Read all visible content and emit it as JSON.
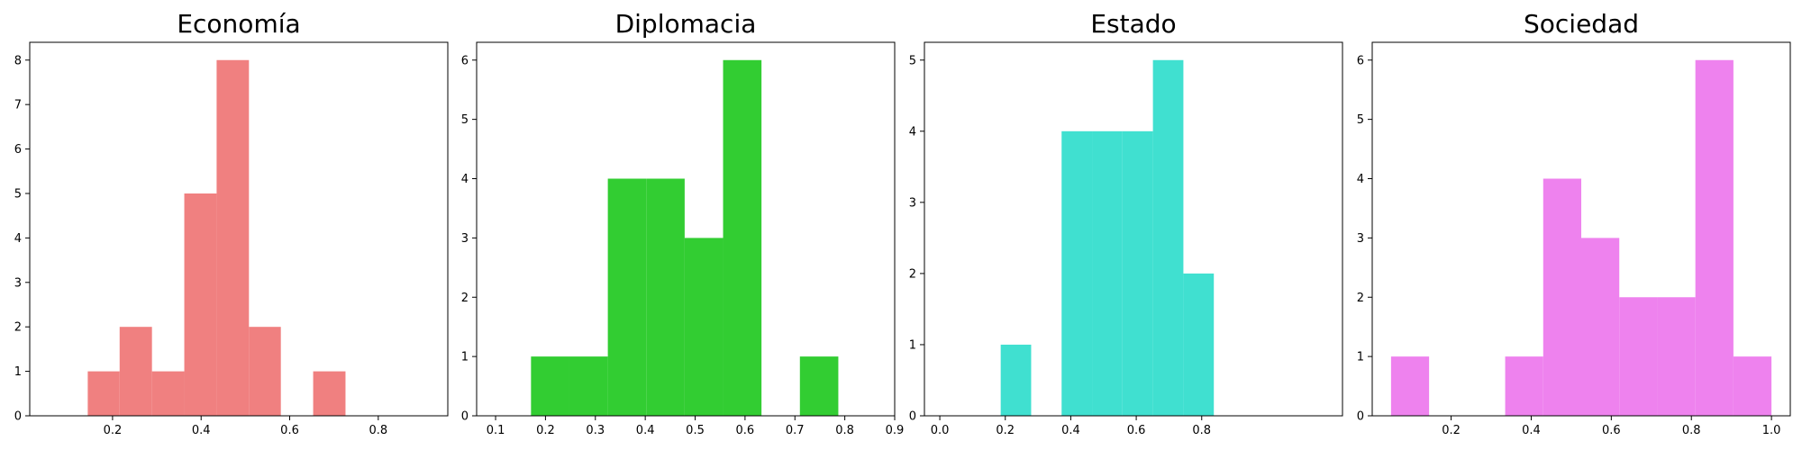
{
  "chart_data": [
    {
      "type": "bar",
      "title": "Economía",
      "color": "#f08080",
      "xlim": [
        0.013,
        0.957
      ],
      "ylim": [
        0,
        8.4
      ],
      "xticks": [
        0.2,
        0.4,
        0.6,
        0.8
      ],
      "xtick_labels": [
        "0.2",
        "0.4",
        "0.6",
        "0.8"
      ],
      "yticks": [
        0,
        1,
        2,
        3,
        4,
        5,
        6,
        7,
        8
      ],
      "ytick_labels": [
        "0",
        "1",
        "2",
        "3",
        "4",
        "5",
        "6",
        "7",
        "8"
      ],
      "bins": [
        {
          "x0": 0.144,
          "x1": 0.216,
          "count": 1
        },
        {
          "x0": 0.216,
          "x1": 0.289,
          "count": 2
        },
        {
          "x0": 0.289,
          "x1": 0.362,
          "count": 1
        },
        {
          "x0": 0.362,
          "x1": 0.435,
          "count": 5
        },
        {
          "x0": 0.435,
          "x1": 0.508,
          "count": 8
        },
        {
          "x0": 0.508,
          "x1": 0.58,
          "count": 2
        },
        {
          "x0": 0.58,
          "x1": 0.653,
          "count": 0
        },
        {
          "x0": 0.653,
          "x1": 0.726,
          "count": 1
        }
      ]
    },
    {
      "type": "bar",
      "title": "Diplomacia",
      "color": "#32cd32",
      "xlim": [
        0.062,
        0.9
      ],
      "ylim": [
        0,
        6.3
      ],
      "xticks": [
        0.1,
        0.2,
        0.3,
        0.4,
        0.5,
        0.6,
        0.7,
        0.8,
        0.9
      ],
      "xtick_labels": [
        "0.1",
        "0.2",
        "0.3",
        "0.4",
        "0.5",
        "0.6",
        "0.7",
        "0.8",
        "0.9"
      ],
      "yticks": [
        0,
        1,
        2,
        3,
        4,
        5,
        6
      ],
      "ytick_labels": [
        "0",
        "1",
        "2",
        "3",
        "4",
        "5",
        "6"
      ],
      "bins": [
        {
          "x0": 0.171,
          "x1": 0.248,
          "count": 1
        },
        {
          "x0": 0.248,
          "x1": 0.325,
          "count": 1
        },
        {
          "x0": 0.325,
          "x1": 0.402,
          "count": 4
        },
        {
          "x0": 0.402,
          "x1": 0.479,
          "count": 4
        },
        {
          "x0": 0.479,
          "x1": 0.556,
          "count": 3
        },
        {
          "x0": 0.556,
          "x1": 0.633,
          "count": 6
        },
        {
          "x0": 0.633,
          "x1": 0.71,
          "count": 0
        },
        {
          "x0": 0.71,
          "x1": 0.787,
          "count": 1
        }
      ]
    },
    {
      "type": "bar",
      "title": "Estado",
      "color": "#40e0d0",
      "xlim": [
        -0.047,
        1.23
      ],
      "ylim": [
        0,
        5.25
      ],
      "xticks": [
        0.0,
        0.2,
        0.4,
        0.6,
        0.8
      ],
      "xtick_labels": [
        "0.0",
        "0.2",
        "0.4",
        "0.6",
        "0.8"
      ],
      "yticks": [
        0,
        1,
        2,
        3,
        4,
        5
      ],
      "ytick_labels": [
        "0",
        "1",
        "2",
        "3",
        "4",
        "5"
      ],
      "bins": [
        {
          "x0": 0.186,
          "x1": 0.279,
          "count": 1
        },
        {
          "x0": 0.279,
          "x1": 0.372,
          "count": 0
        },
        {
          "x0": 0.372,
          "x1": 0.465,
          "count": 4
        },
        {
          "x0": 0.465,
          "x1": 0.558,
          "count": 4
        },
        {
          "x0": 0.558,
          "x1": 0.651,
          "count": 4
        },
        {
          "x0": 0.651,
          "x1": 0.744,
          "count": 5
        },
        {
          "x0": 0.744,
          "x1": 0.837,
          "count": 2
        }
      ]
    },
    {
      "type": "bar",
      "title": "Sociedad",
      "color": "#ee82ee",
      "xlim": [
        0.003,
        1.047
      ],
      "ylim": [
        0,
        6.3
      ],
      "xticks": [
        0.2,
        0.4,
        0.6,
        0.8,
        1.0
      ],
      "xtick_labels": [
        "0.2",
        "0.4",
        "0.6",
        "0.8",
        "1.0"
      ],
      "yticks": [
        0,
        1,
        2,
        3,
        4,
        5,
        6
      ],
      "ytick_labels": [
        "0",
        "1",
        "2",
        "3",
        "4",
        "5",
        "6"
      ],
      "bins": [
        {
          "x0": 0.05,
          "x1": 0.145,
          "count": 1
        },
        {
          "x0": 0.145,
          "x1": 0.24,
          "count": 0
        },
        {
          "x0": 0.24,
          "x1": 0.335,
          "count": 0
        },
        {
          "x0": 0.335,
          "x1": 0.43,
          "count": 1
        },
        {
          "x0": 0.43,
          "x1": 0.525,
          "count": 4
        },
        {
          "x0": 0.525,
          "x1": 0.62,
          "count": 3
        },
        {
          "x0": 0.62,
          "x1": 0.715,
          "count": 2
        },
        {
          "x0": 0.715,
          "x1": 0.81,
          "count": 2
        },
        {
          "x0": 0.81,
          "x1": 0.905,
          "count": 6
        },
        {
          "x0": 0.905,
          "x1": 1.0,
          "count": 1
        }
      ]
    }
  ]
}
